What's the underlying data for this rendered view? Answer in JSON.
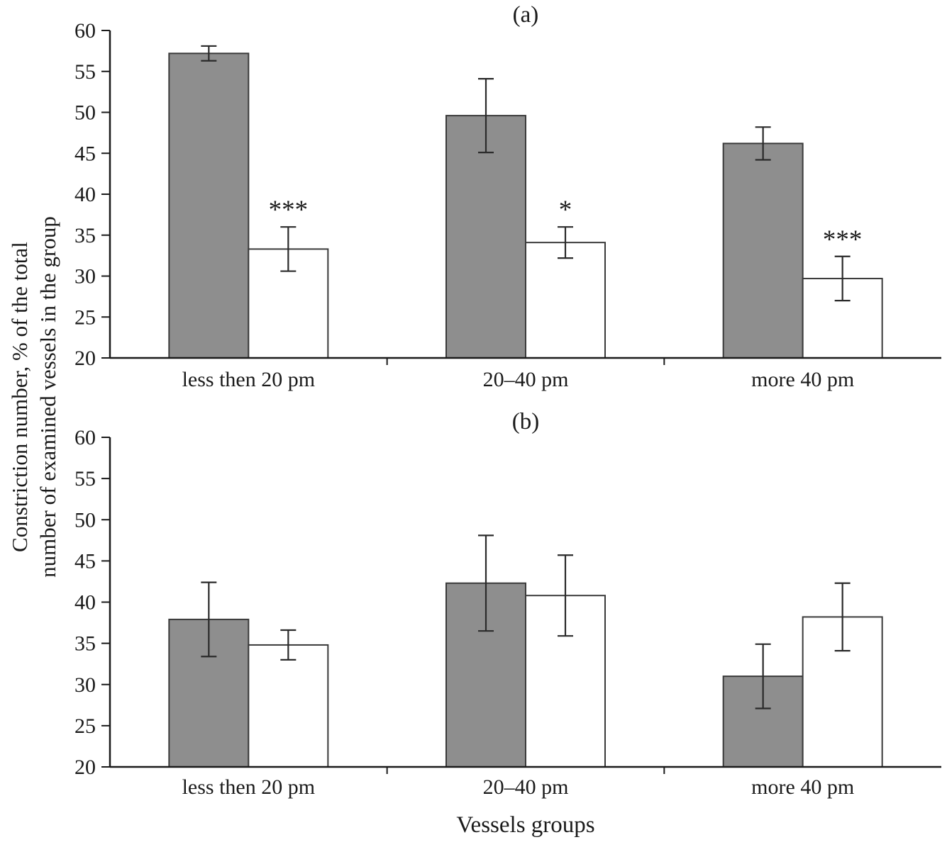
{
  "figure": {
    "ylabel": "Constriction number, % of the total\nnumber of examined vessels in the group",
    "xlabel": "Vessels groups"
  },
  "chart_data": [
    {
      "type": "bar",
      "title": "(a)",
      "categories": [
        "less then 20 pm",
        "20–40 pm",
        "more 40 pm"
      ],
      "series": [
        {
          "name": "gray-filled",
          "color": "#8e8e8e",
          "values": [
            57.2,
            49.6,
            46.2
          ],
          "errors": [
            0.9,
            4.5,
            2.0
          ]
        },
        {
          "name": "white-open",
          "color": "#ffffff",
          "values": [
            33.3,
            34.1,
            29.7
          ],
          "errors": [
            2.7,
            1.9,
            2.7
          ]
        }
      ],
      "annotations": [
        "***",
        "*",
        "***"
      ],
      "ylim": [
        20,
        60
      ],
      "ytick_step": 5,
      "grid": false,
      "legend": "none"
    },
    {
      "type": "bar",
      "title": "(b)",
      "categories": [
        "less then 20 pm",
        "20–40 pm",
        "more 40 pm"
      ],
      "series": [
        {
          "name": "gray-filled",
          "color": "#8e8e8e",
          "values": [
            37.9,
            42.3,
            31.0
          ],
          "errors": [
            4.5,
            5.8,
            3.9
          ]
        },
        {
          "name": "white-open",
          "color": "#ffffff",
          "values": [
            34.8,
            40.8,
            38.2
          ],
          "errors": [
            1.8,
            4.9,
            4.1
          ]
        }
      ],
      "annotations": [
        "",
        "",
        ""
      ],
      "ylim": [
        20,
        60
      ],
      "ytick_step": 5,
      "grid": false,
      "legend": "none"
    }
  ]
}
